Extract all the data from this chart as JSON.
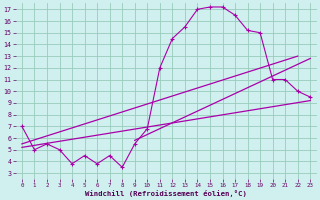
{
  "bg_color": "#cff0ee",
  "grid_color": "#99ccbb",
  "line_color": "#aa00aa",
  "x_ticks": [
    0,
    1,
    2,
    3,
    4,
    5,
    6,
    7,
    8,
    9,
    10,
    11,
    12,
    13,
    14,
    15,
    16,
    17,
    18,
    19,
    20,
    21,
    22,
    23
  ],
  "y_ticks": [
    3,
    4,
    5,
    6,
    7,
    8,
    9,
    10,
    11,
    12,
    13,
    14,
    15,
    16,
    17
  ],
  "xlim": [
    -0.5,
    23.5
  ],
  "ylim": [
    2.5,
    17.5
  ],
  "xlabel": "Windchill (Refroidissement éolien,°C)",
  "line1_x": [
    0,
    1,
    2,
    3,
    4,
    5,
    6,
    7,
    8,
    9,
    10,
    11,
    12,
    13,
    14,
    15,
    16,
    17,
    18,
    19,
    20,
    21,
    22,
    23
  ],
  "line1_y": [
    7.0,
    5.0,
    5.5,
    5.0,
    3.8,
    4.5,
    3.8,
    4.5,
    3.5,
    5.5,
    6.8,
    12.0,
    14.5,
    15.5,
    17.0,
    17.2,
    17.2,
    16.5,
    15.2,
    15.0,
    11.0,
    11.0,
    10.0,
    9.5
  ],
  "line2_x": [
    0,
    23
  ],
  "line2_y": [
    5.2,
    9.2
  ],
  "line3_x": [
    0,
    22
  ],
  "line3_y": [
    5.5,
    13.0
  ],
  "line4_x": [
    9,
    23
  ],
  "line4_y": [
    5.8,
    12.8
  ]
}
